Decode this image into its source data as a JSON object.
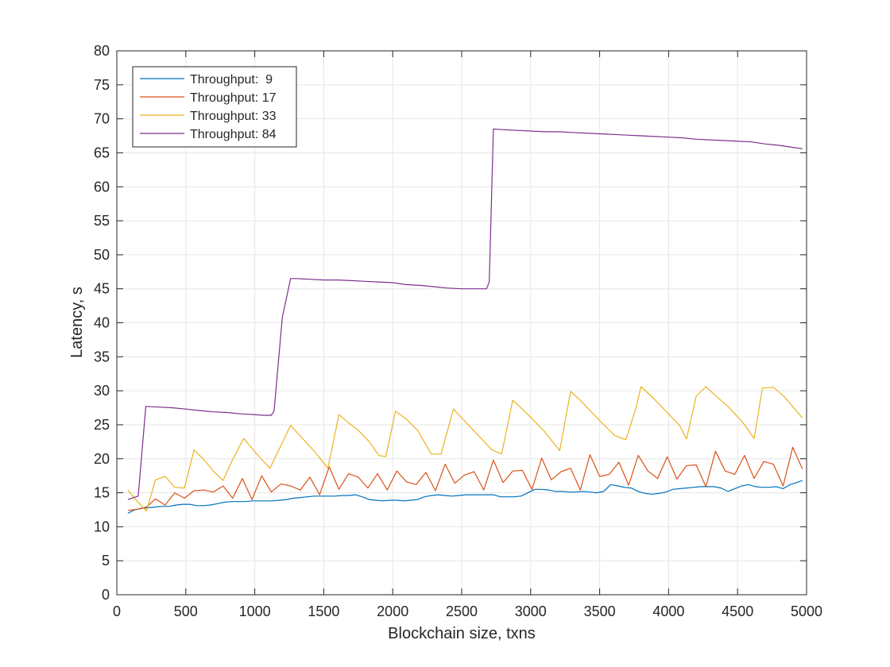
{
  "chart_data": {
    "type": "line",
    "title": "",
    "xlabel": "Blockchain size, txns",
    "ylabel": "Latency, s",
    "xlim": [
      0,
      5000
    ],
    "ylim": [
      0,
      80
    ],
    "xticks": [
      0,
      500,
      1000,
      1500,
      2000,
      2500,
      3000,
      3500,
      4000,
      4500,
      5000
    ],
    "yticks": [
      0,
      5,
      10,
      15,
      20,
      25,
      30,
      35,
      40,
      45,
      50,
      55,
      60,
      65,
      70,
      75,
      80
    ],
    "grid": true,
    "legend_position": "top-left",
    "series": [
      {
        "name": "Throughput:  9",
        "color": "#0072BD",
        "x": [
          80,
          130,
          180,
          230,
          280,
          330,
          380,
          430,
          480,
          530,
          580,
          630,
          680,
          730,
          780,
          830,
          880,
          930,
          980,
          1030,
          1080,
          1130,
          1180,
          1230,
          1280,
          1330,
          1380,
          1430,
          1480,
          1530,
          1580,
          1630,
          1680,
          1730,
          1780,
          1830,
          1880,
          1930,
          1980,
          2030,
          2080,
          2130,
          2180,
          2230,
          2280,
          2330,
          2380,
          2430,
          2480,
          2530,
          2580,
          2630,
          2680,
          2730,
          2780,
          2830,
          2880,
          2930,
          2980,
          3030,
          3080,
          3130,
          3180,
          3230,
          3280,
          3330,
          3380,
          3430,
          3480,
          3530,
          3580,
          3630,
          3680,
          3730,
          3780,
          3830,
          3880,
          3930,
          3980,
          4030,
          4080,
          4130,
          4180,
          4230,
          4280,
          4330,
          4380,
          4430,
          4480,
          4530,
          4580,
          4630,
          4680,
          4730,
          4780,
          4830,
          4880,
          4930,
          4970
        ],
        "y": [
          12.0,
          12.5,
          12.7,
          12.8,
          12.9,
          13.0,
          13.0,
          13.2,
          13.3,
          13.3,
          13.1,
          13.1,
          13.2,
          13.4,
          13.6,
          13.7,
          13.7,
          13.7,
          13.8,
          13.8,
          13.8,
          13.8,
          13.9,
          14.0,
          14.2,
          14.3,
          14.4,
          14.5,
          14.5,
          14.5,
          14.5,
          14.6,
          14.6,
          14.7,
          14.4,
          14.0,
          13.9,
          13.8,
          13.9,
          13.9,
          13.8,
          13.9,
          14.0,
          14.4,
          14.6,
          14.7,
          14.6,
          14.5,
          14.6,
          14.7,
          14.7,
          14.7,
          14.7,
          14.7,
          14.4,
          14.4,
          14.4,
          14.5,
          15.0,
          15.5,
          15.5,
          15.4,
          15.2,
          15.2,
          15.1,
          15.1,
          15.2,
          15.1,
          15.0,
          15.2,
          16.2,
          16.0,
          15.8,
          15.7,
          15.2,
          14.9,
          14.8,
          14.9,
          15.1,
          15.5,
          15.6,
          15.7,
          15.8,
          15.9,
          15.9,
          15.9,
          15.7,
          15.2,
          15.6,
          16.0,
          16.2,
          15.9,
          15.8,
          15.8,
          15.9,
          15.6,
          16.2,
          16.5,
          16.8
        ]
      },
      {
        "name": "Throughput: 17",
        "color": "#D95319",
        "x": [
          80,
          155,
          215,
          280,
          350,
          420,
          490,
          560,
          630,
          700,
          770,
          840,
          910,
          980,
          1050,
          1120,
          1190,
          1260,
          1330,
          1400,
          1470,
          1540,
          1610,
          1680,
          1750,
          1820,
          1890,
          1960,
          2030,
          2100,
          2170,
          2240,
          2310,
          2380,
          2450,
          2520,
          2590,
          2660,
          2730,
          2800,
          2870,
          2940,
          3010,
          3080,
          3150,
          3220,
          3290,
          3360,
          3430,
          3500,
          3570,
          3640,
          3710,
          3780,
          3850,
          3920,
          3990,
          4060,
          4130,
          4200,
          4270,
          4340,
          4410,
          4480,
          4550,
          4620,
          4690,
          4760,
          4830,
          4900,
          4970
        ],
        "y": [
          12.4,
          12.6,
          12.9,
          14.1,
          13.2,
          15.0,
          14.2,
          15.3,
          15.4,
          15.1,
          16.0,
          14.2,
          17.1,
          14.0,
          17.5,
          15.1,
          16.3,
          16.0,
          15.4,
          17.3,
          14.7,
          18.8,
          15.5,
          17.8,
          17.3,
          15.7,
          17.8,
          15.4,
          18.2,
          16.6,
          16.2,
          18.0,
          15.3,
          19.2,
          16.4,
          17.6,
          18.1,
          15.4,
          19.8,
          16.5,
          18.2,
          18.3,
          15.5,
          20.1,
          16.9,
          18.1,
          18.6,
          15.4,
          20.6,
          17.4,
          17.7,
          19.5,
          16.1,
          20.5,
          18.2,
          17.1,
          20.3,
          17.0,
          19.0,
          19.1,
          15.9,
          21.1,
          18.2,
          17.7,
          20.5,
          17.1,
          19.6,
          19.2,
          16.0,
          21.7,
          18.5
        ]
      },
      {
        "name": "Throughput: 33",
        "color": "#EDB120",
        "x": [
          80,
          150,
          215,
          280,
          350,
          420,
          490,
          560,
          630,
          700,
          770,
          840,
          920,
          1010,
          1110,
          1180,
          1260,
          1350,
          1440,
          1530,
          1610,
          1680,
          1750,
          1830,
          1900,
          1950,
          2020,
          2100,
          2180,
          2280,
          2350,
          2440,
          2510,
          2580,
          2650,
          2720,
          2790,
          2870,
          2940,
          3010,
          3100,
          3210,
          3290,
          3360,
          3430,
          3520,
          3610,
          3690,
          3760,
          3800,
          3890,
          3970,
          4080,
          4130,
          4200,
          4270,
          4350,
          4430,
          4540,
          4620,
          4680,
          4760,
          4840,
          4970
        ],
        "y": [
          15.4,
          13.7,
          12.3,
          16.9,
          17.4,
          15.8,
          15.7,
          21.3,
          19.9,
          18.2,
          16.8,
          19.9,
          23.0,
          20.8,
          18.6,
          21.5,
          24.9,
          22.9,
          20.9,
          18.6,
          26.5,
          25.3,
          24.2,
          22.5,
          20.5,
          20.3,
          27.0,
          25.8,
          24.2,
          20.7,
          20.7,
          27.3,
          25.8,
          24.3,
          22.8,
          21.3,
          20.7,
          28.6,
          27.3,
          25.9,
          24.0,
          21.2,
          29.9,
          28.6,
          27.1,
          25.2,
          23.4,
          22.8,
          27.2,
          30.6,
          28.9,
          27.2,
          24.9,
          22.9,
          29.2,
          30.6,
          29.1,
          27.7,
          25.3,
          23.0,
          30.4,
          30.5,
          29.1,
          26.0
        ]
      },
      {
        "name": "Throughput: 84",
        "color": "#7E2F8E",
        "x": [
          80,
          155,
          210,
          300,
          400,
          500,
          600,
          700,
          800,
          900,
          1000,
          1060,
          1120,
          1140,
          1200,
          1260,
          1300,
          1400,
          1500,
          1600,
          1700,
          1800,
          1900,
          2000,
          2100,
          2200,
          2300,
          2400,
          2500,
          2600,
          2680,
          2700,
          2730,
          2800,
          2900,
          3000,
          3100,
          3200,
          3300,
          3400,
          3500,
          3600,
          3700,
          3800,
          3900,
          4000,
          4100,
          4200,
          4300,
          4400,
          4500,
          4600,
          4700,
          4800,
          4900,
          4970
        ],
        "y": [
          14.0,
          14.5,
          27.7,
          27.6,
          27.5,
          27.3,
          27.1,
          26.9,
          26.8,
          26.6,
          26.5,
          26.4,
          26.4,
          27.0,
          40.8,
          46.5,
          46.5,
          46.4,
          46.3,
          46.3,
          46.2,
          46.1,
          46.0,
          45.9,
          45.6,
          45.5,
          45.3,
          45.1,
          45.0,
          45.0,
          45.0,
          46.0,
          68.5,
          68.4,
          68.3,
          68.2,
          68.1,
          68.1,
          68.0,
          67.9,
          67.8,
          67.7,
          67.6,
          67.5,
          67.4,
          67.3,
          67.2,
          67.0,
          66.9,
          66.8,
          66.7,
          66.6,
          66.3,
          66.1,
          65.8,
          65.6
        ]
      }
    ]
  }
}
